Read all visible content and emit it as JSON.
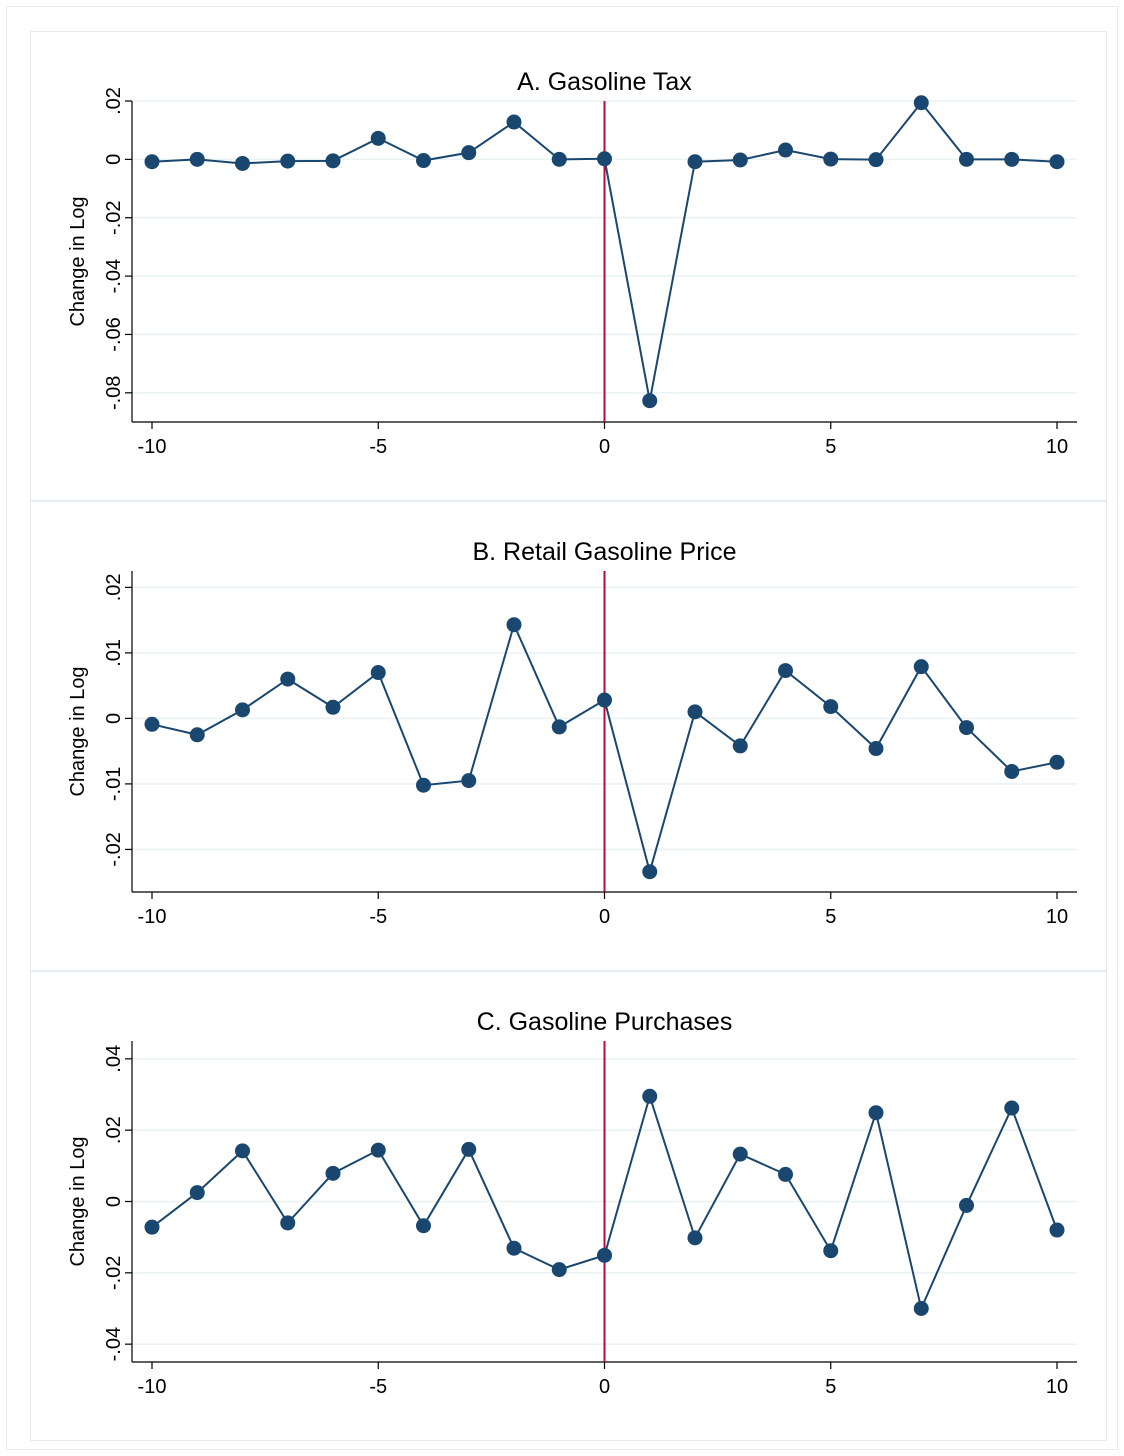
{
  "chart_data": [
    {
      "type": "line",
      "title": "A. Gasoline Tax",
      "xlabel": "",
      "ylabel": "Change in Log",
      "xlim": [
        -10,
        10
      ],
      "ylim": [
        -0.09,
        0.02
      ],
      "xticks": [
        -10,
        -5,
        0,
        5,
        10
      ],
      "xtick_labels": [
        "-10",
        "-5",
        "0",
        "5",
        "10"
      ],
      "yticks": [
        -0.08,
        -0.06,
        -0.04,
        -0.02,
        0,
        0.02
      ],
      "ytick_labels": [
        "-.08",
        "-.06",
        "-.04",
        "-.02",
        "0",
        ".02"
      ],
      "grid": true,
      "vline_x": 0,
      "x": [
        -10,
        -9,
        -8,
        -7,
        -6,
        -5,
        -4,
        -3,
        -2,
        -1,
        0,
        1,
        2,
        3,
        4,
        5,
        6,
        7,
        8,
        9,
        10
      ],
      "series": [
        {
          "values": [
            -0.0008,
            0.0,
            -0.0014,
            -0.0006,
            -0.0005,
            0.0072,
            -0.0004,
            0.0023,
            0.0128,
            0.0,
            0.0002,
            -0.0827,
            -0.0008,
            -0.0002,
            0.0032,
            0.0001,
            -0.0001,
            0.0194,
            0.0,
            0.0,
            -0.0008
          ]
        }
      ]
    },
    {
      "type": "line",
      "title": "B. Retail Gasoline Price",
      "xlabel": "",
      "ylabel": "Change in Log",
      "xlim": [
        -10,
        10
      ],
      "ylim": [
        -0.0265,
        0.0225
      ],
      "xticks": [
        -10,
        -5,
        0,
        5,
        10
      ],
      "xtick_labels": [
        "-10",
        "-5",
        "0",
        "5",
        "10"
      ],
      "yticks": [
        -0.02,
        -0.01,
        0,
        0.01,
        0.02
      ],
      "ytick_labels": [
        "-.02",
        "-.01",
        "0",
        ".01",
        ".02"
      ],
      "grid": true,
      "vline_x": 0,
      "x": [
        -10,
        -9,
        -8,
        -7,
        -6,
        -5,
        -4,
        -3,
        -2,
        -1,
        0,
        1,
        2,
        3,
        4,
        5,
        6,
        7,
        8,
        9,
        10
      ],
      "series": [
        {
          "values": [
            -0.0009,
            -0.0025,
            0.0013,
            0.006,
            0.0017,
            0.007,
            -0.0102,
            -0.0095,
            0.0143,
            -0.0013,
            0.0028,
            -0.0234,
            0.001,
            -0.0042,
            0.0073,
            0.0018,
            -0.0046,
            0.0079,
            -0.0014,
            -0.0081,
            -0.0067
          ]
        }
      ]
    },
    {
      "type": "line",
      "title": "C. Gasoline Purchases",
      "xlabel": "",
      "ylabel": "Change in Log",
      "xlim": [
        -10,
        10
      ],
      "ylim": [
        -0.045,
        0.045
      ],
      "xticks": [
        -10,
        -5,
        0,
        5,
        10
      ],
      "xtick_labels": [
        "-10",
        "-5",
        "0",
        "5",
        "10"
      ],
      "yticks": [
        -0.04,
        -0.02,
        0,
        0.02,
        0.04
      ],
      "ytick_labels": [
        "-.04",
        "-.02",
        "0",
        ".02",
        ".04"
      ],
      "grid": true,
      "vline_x": 0,
      "x": [
        -10,
        -9,
        -8,
        -7,
        -6,
        -5,
        -4,
        -3,
        -2,
        -1,
        0,
        1,
        2,
        3,
        4,
        5,
        6,
        7,
        8,
        9,
        10
      ],
      "series": [
        {
          "values": [
            -0.0072,
            0.0025,
            0.0142,
            -0.006,
            0.0079,
            0.0144,
            -0.0068,
            0.0146,
            -0.0131,
            -0.0191,
            -0.0151,
            0.0295,
            -0.0102,
            0.0133,
            0.0076,
            -0.0138,
            0.0249,
            -0.03,
            -0.0011,
            0.0262,
            -0.008
          ]
        }
      ]
    }
  ],
  "colors": {
    "line": "#1a476f",
    "marker": "#1a476f",
    "vline": "#c10534",
    "grid": "#eaf2f3",
    "axis": "#000000",
    "text": "#000000",
    "title": "#1e3c5a"
  }
}
